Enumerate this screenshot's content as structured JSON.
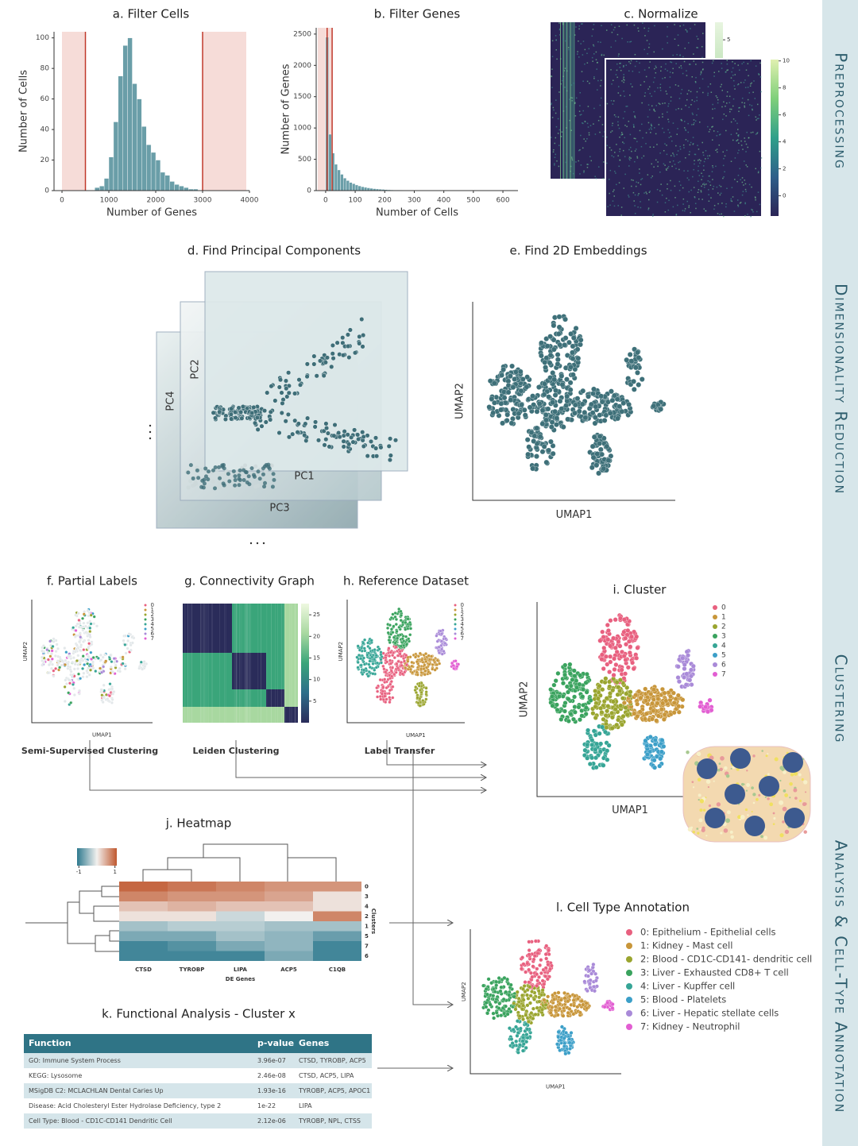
{
  "sidebar": [
    "Preprocessing",
    "Dimensionality Reduction",
    "Clustering",
    "Analysis & Cell-Type Annotation"
  ],
  "filter_cells": {
    "title": "a. Filter Cells",
    "x_label": "Number of Genes",
    "y_label": "Number of Cells",
    "xlim": [
      -170,
      4000
    ],
    "ylim": [
      0,
      104
    ],
    "xticks": [
      0,
      1000,
      2000,
      3000,
      4000
    ],
    "yticks": [
      0,
      20,
      40,
      60,
      80,
      100
    ],
    "thresholds": [
      500,
      3000
    ],
    "bins": [
      700,
      800,
      900,
      1000,
      1100,
      1200,
      1300,
      1400,
      1500,
      1600,
      1700,
      1800,
      1900,
      2000,
      2100,
      2200,
      2300,
      2400,
      2500,
      2600,
      2700,
      2800,
      2900
    ],
    "counts": [
      2,
      3,
      8,
      22,
      45,
      75,
      95,
      100,
      70,
      60,
      42,
      30,
      25,
      20,
      12,
      10,
      6,
      4,
      3,
      2,
      1,
      1
    ]
  },
  "filter_genes": {
    "title": "b. Filter Genes",
    "x_label": "Number of Cells",
    "y_label": "Number of Genes",
    "xlim": [
      -32,
      651
    ],
    "ylim": [
      0,
      2600
    ],
    "xticks": [
      0,
      100,
      200,
      300,
      400,
      500,
      600
    ],
    "yticks": [
      0,
      500,
      1000,
      1500,
      2000,
      2500
    ],
    "thresholds": [
      5,
      22
    ],
    "bins": [
      0,
      10,
      20,
      30,
      40,
      50,
      60,
      70,
      80,
      90,
      100,
      110,
      120,
      130,
      140,
      150,
      160,
      170,
      180,
      190,
      200,
      210,
      220,
      230,
      240,
      250,
      260,
      270,
      280,
      290,
      300
    ],
    "counts": [
      2450,
      900,
      600,
      420,
      330,
      260,
      200,
      160,
      130,
      110,
      90,
      75,
      62,
      52,
      44,
      37,
      31,
      26,
      22,
      19,
      16,
      13,
      11,
      9,
      8,
      7,
      6,
      5,
      4,
      4
    ]
  },
  "normalize": {
    "title": "c. Normalize",
    "back_colorbar_lim": [
      -2.9,
      6
    ],
    "back_colorbar_ticks": [
      5
    ],
    "front_colorbar_lim": [
      -1.5,
      10.1
    ],
    "front_colorbar_ticks": [
      0,
      2,
      4,
      6,
      8,
      10
    ]
  },
  "pca": {
    "title": "d. Find Principal Components",
    "axes": [
      "PC1",
      "PC2",
      "PC3",
      "PC4"
    ]
  },
  "embeddings": {
    "title": "e. Find 2D Embeddings",
    "x_label": "UMAP1",
    "y_label": "UMAP2"
  },
  "partial_labels": {
    "title": "f. Partial Labels",
    "x_label": "UMAP1",
    "y_label": "UMAP2",
    "legend": [
      "0",
      "1",
      "2",
      "3",
      "4",
      "5",
      "6",
      "7"
    ],
    "method": "Semi-Supervised Clustering"
  },
  "connectivity": {
    "title": "g. Connectivity Graph",
    "colorbar_lim": [
      0,
      27.6
    ],
    "colorbar_ticks": [
      5,
      10,
      15,
      20,
      25
    ],
    "method": "Leiden Clustering"
  },
  "reference": {
    "title": "h. Reference Dataset",
    "x_label": "UMAP1",
    "y_label": "UMAP2",
    "legend": [
      "0",
      "1",
      "2",
      "3",
      "4",
      "5",
      "6",
      "7"
    ],
    "method": "Label Transfer"
  },
  "cluster": {
    "title": "i. Cluster",
    "x_label": "UMAP1",
    "y_label": "UMAP2",
    "legend": [
      "0",
      "1",
      "2",
      "3",
      "4",
      "5",
      "6",
      "7"
    ]
  },
  "heatmap": {
    "title": "j. Heatmap",
    "colorbar_lim": [
      -1.1,
      1.1
    ],
    "colorbar_ticks": [
      -1,
      1
    ],
    "rows": [
      "0",
      "3",
      "4",
      "2",
      "1",
      "5",
      "7",
      "6"
    ],
    "row_axis": "Clusters",
    "columns": [
      "CTSD",
      "TYROBP",
      "LIPA",
      "ACP5",
      "C1QB"
    ],
    "column_axis": "DE Genes",
    "values": [
      [
        0.9,
        0.8,
        0.7,
        0.6,
        0.6
      ],
      [
        0.7,
        0.6,
        0.6,
        0.5,
        0.1
      ],
      [
        0.3,
        0.4,
        0.3,
        0.3,
        0.1
      ],
      [
        0.1,
        0.1,
        -0.2,
        0.0,
        0.7
      ],
      [
        -0.4,
        -0.3,
        -0.3,
        -0.4,
        -0.4
      ],
      [
        -0.6,
        -0.6,
        -0.4,
        -0.5,
        -0.7
      ],
      [
        -0.9,
        -0.8,
        -0.6,
        -0.5,
        -0.9
      ],
      [
        -0.9,
        -0.9,
        -0.9,
        -0.6,
        -0.9
      ]
    ]
  },
  "functional": {
    "title": "k. Functional Analysis - Cluster x",
    "header": [
      "Function",
      "p-value",
      "Genes"
    ],
    "rows": [
      [
        "GO: Immune System Process",
        "3.96e-07",
        "CTSD, TYROBP, ACP5"
      ],
      [
        "KEGG: Lysosome",
        "2.46e-08",
        "CTSD, ACP5, LIPA"
      ],
      [
        "MSigDB C2: MCLACHLAN Dental Caries Up",
        "1.93e-16",
        "TYROBP, ACP5, APOC1"
      ],
      [
        "Disease: Acid Cholesteryl Ester Hydrolase Deficiency, type 2",
        "1e-22",
        "LIPA"
      ],
      [
        "Cell Type: Blood - CD1C-CD141 Dendritic Cell",
        "2.12e-06",
        "TYROBP, NPL, CTSS"
      ]
    ]
  },
  "annotation": {
    "title": "l. Cell Type Annotation",
    "x_label": "UMAP1",
    "y_label": "UMAP2",
    "legend": [
      {
        "label": "0: Epithelium - Epithelial cells",
        "color": "#e8607f"
      },
      {
        "label": "1: Kidney - Mast cell",
        "color": "#c8963a"
      },
      {
        "label": "2: Blood - CD1C-CD141- dendritic cell",
        "color": "#9aa52f"
      },
      {
        "label": "3: Liver - Exhausted CD8+ T cell",
        "color": "#3aa35e"
      },
      {
        "label": "4: Liver - Kupffer cell",
        "color": "#36a596"
      },
      {
        "label": "5: Blood - Platelets",
        "color": "#3c9fc8"
      },
      {
        "label": "6: Liver - Hepatic stellate cells",
        "color": "#a98ad8"
      },
      {
        "label": "7: Kidney - Neutrophil",
        "color": "#e25ed2"
      }
    ]
  }
}
